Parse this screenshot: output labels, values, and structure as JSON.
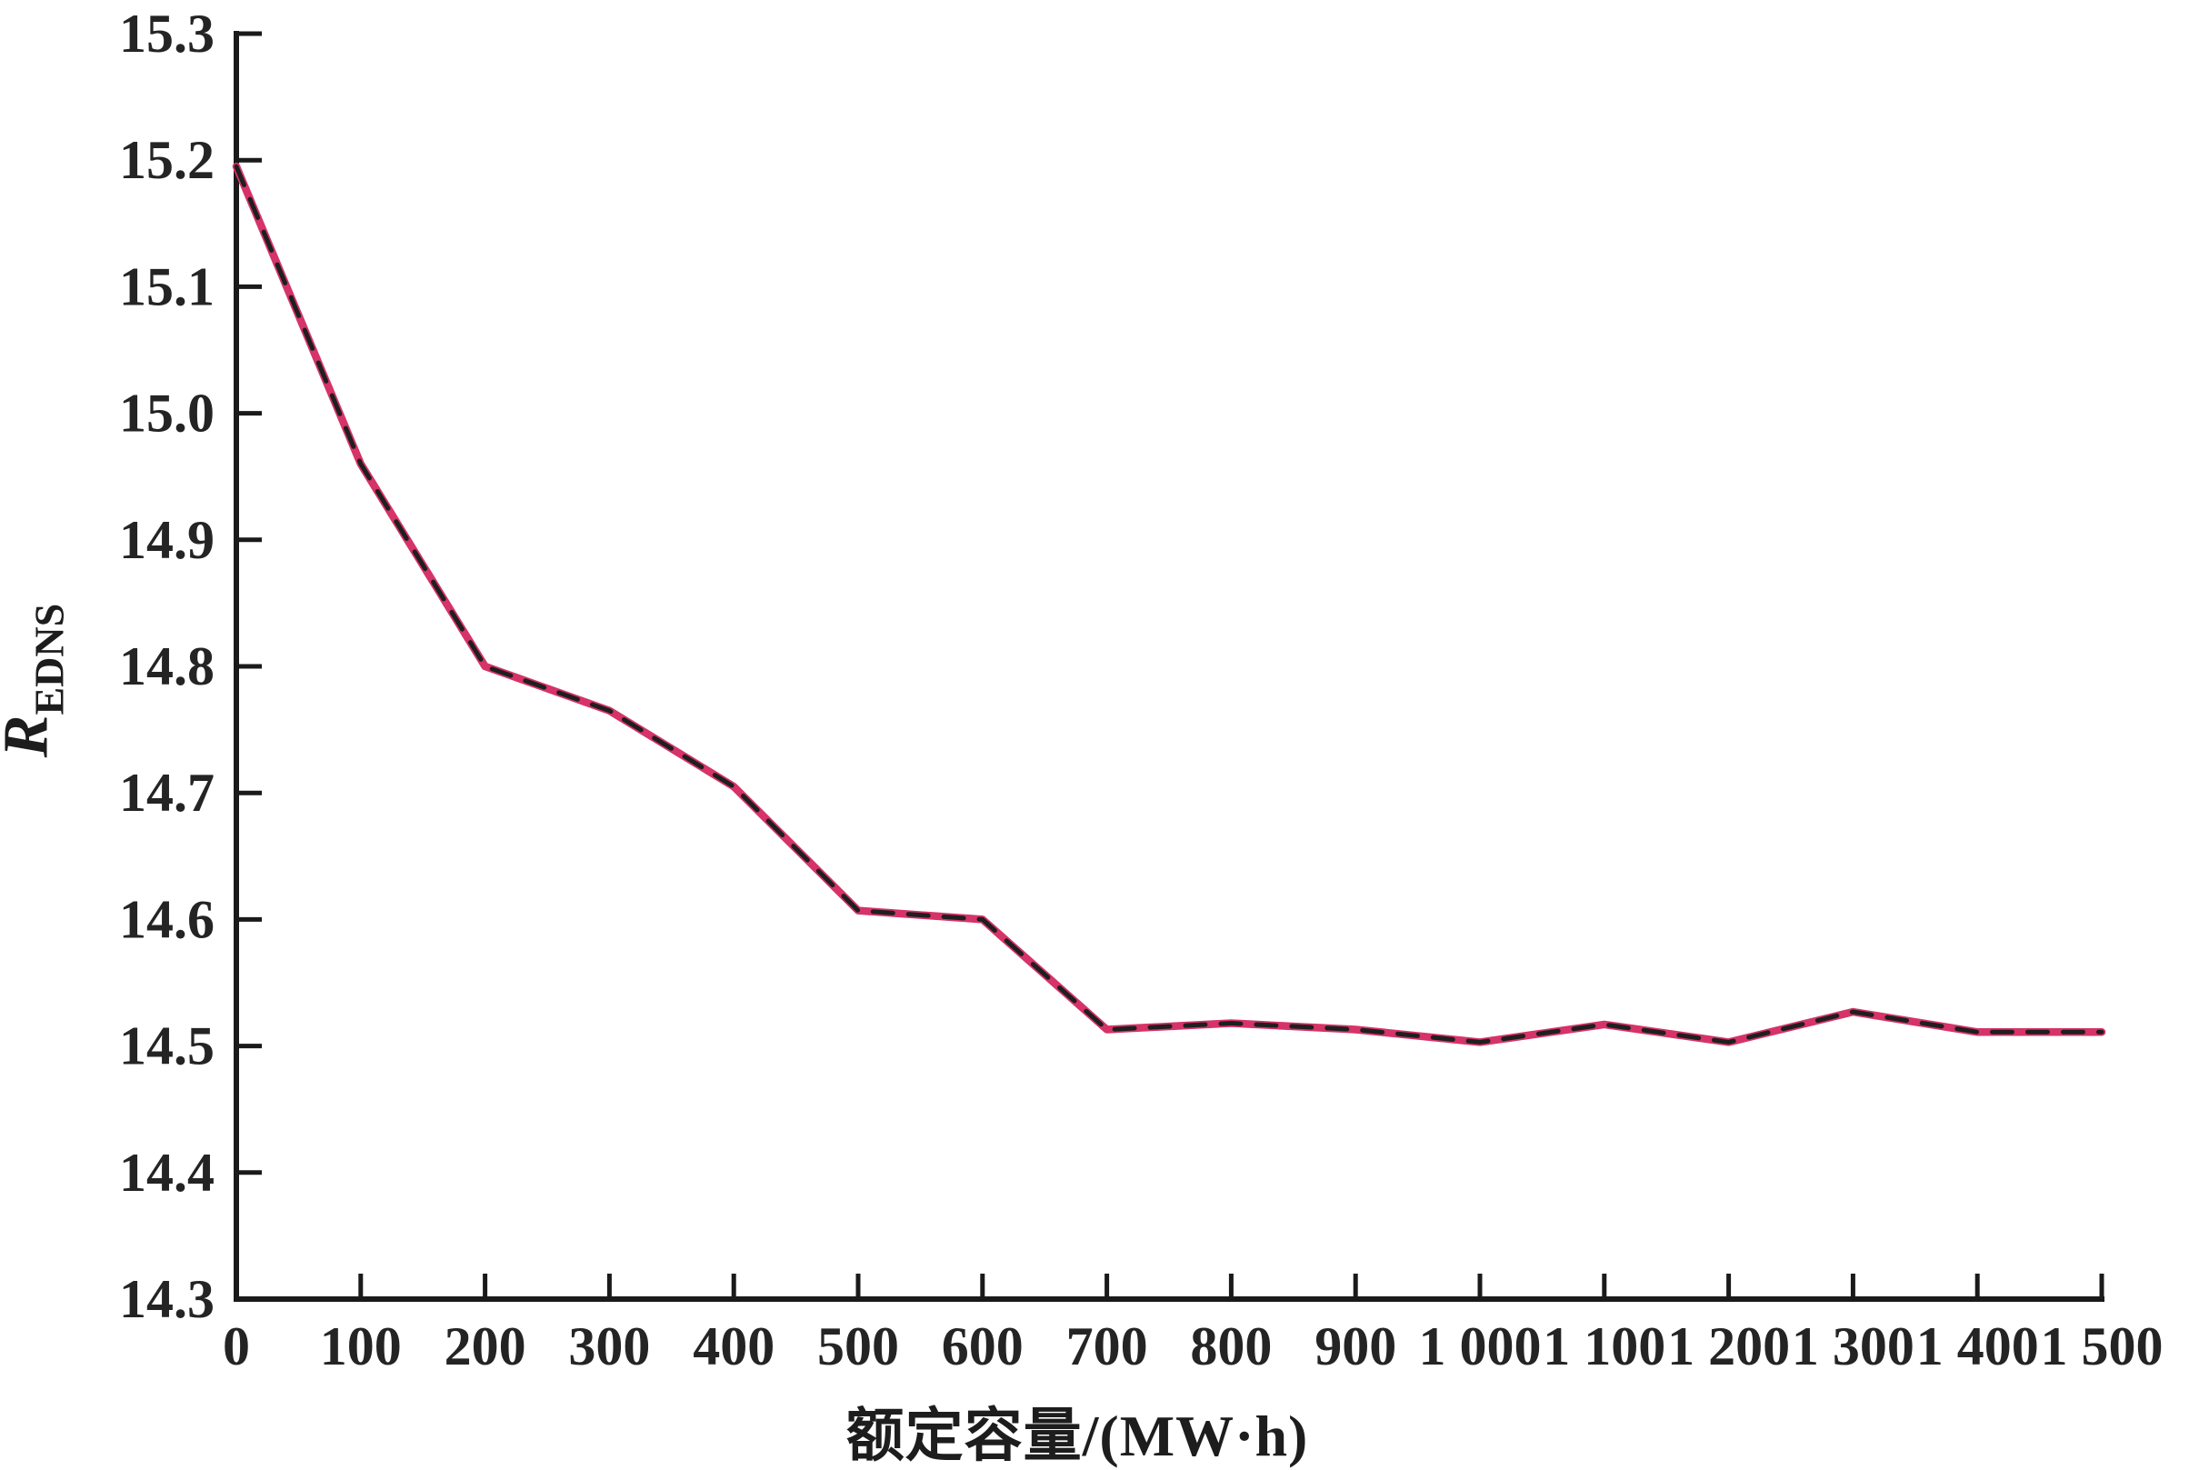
{
  "figure": {
    "background": "#ffffff",
    "xlabel": "额定容量/(MW·h)",
    "ylabel_main": "R",
    "ylabel_sub": "EDNS"
  },
  "chart_data": {
    "type": "line",
    "title": "",
    "xlabel": "额定容量/(MW·h)",
    "ylabel": "R_EDNS",
    "xlim": [
      0,
      1500
    ],
    "ylim": [
      14.3,
      15.3
    ],
    "grid": false,
    "legend_position": "none",
    "x_tick_labels": [
      "0",
      "100",
      "200",
      "300",
      "400",
      "500",
      "600",
      "700",
      "800",
      "900",
      "1 000",
      "1 100",
      "1 200",
      "1 300",
      "1 400",
      "1 500"
    ],
    "x_tick_values": [
      0,
      100,
      200,
      300,
      400,
      500,
      600,
      700,
      800,
      900,
      1000,
      1100,
      1200,
      1300,
      1400,
      1500
    ],
    "y_tick_labels": [
      "15.3",
      "15.2",
      "15.1",
      "15.0",
      "14.9",
      "14.8",
      "14.7",
      "14.6",
      "14.5",
      "14.4",
      "14.3"
    ],
    "y_tick_values": [
      15.3,
      15.2,
      15.1,
      15.0,
      14.9,
      14.8,
      14.7,
      14.6,
      14.5,
      14.4,
      14.3
    ],
    "x": [
      0,
      100,
      200,
      300,
      400,
      500,
      600,
      700,
      800,
      900,
      1000,
      1100,
      1200,
      1300,
      1400,
      1500
    ],
    "series": [
      {
        "name": "solid-red-line",
        "style": "solid",
        "color": "#d63368",
        "stroke_width": 8.5,
        "values": [
          15.195,
          14.96,
          14.8,
          14.765,
          14.705,
          14.607,
          14.6,
          14.513,
          14.518,
          14.513,
          14.503,
          14.517,
          14.503,
          14.527,
          14.511,
          14.511
        ]
      },
      {
        "name": "dashed-black-overlay-line",
        "style": "dashed",
        "color": "#1f1f1f",
        "stroke_width": 5,
        "values": [
          15.195,
          14.96,
          14.8,
          14.765,
          14.705,
          14.607,
          14.6,
          14.513,
          14.518,
          14.513,
          14.503,
          14.517,
          14.503,
          14.527,
          14.511,
          14.511
        ]
      }
    ]
  },
  "colors": {
    "axis": "#1a1a1a",
    "tick_text": "#242424",
    "line_red": "#d63368",
    "line_black_dash": "#1f1f1f"
  }
}
